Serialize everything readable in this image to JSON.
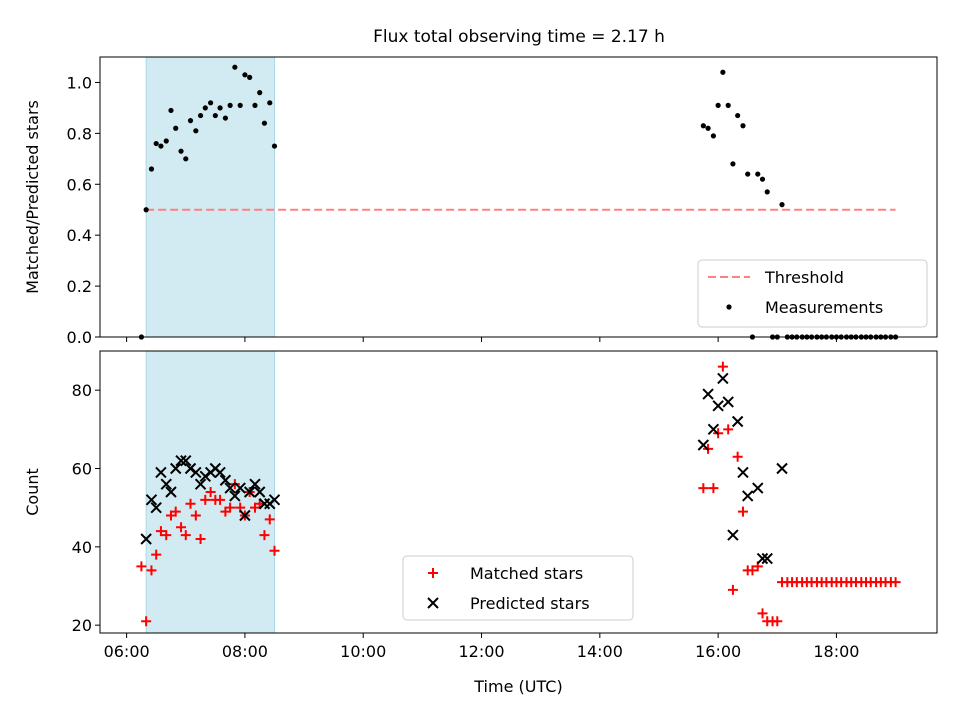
{
  "title": "Flux total observing time = 2.17 h",
  "colors": {
    "band": "#add8e6",
    "threshold": "#ff8080",
    "measurements": "#000000",
    "matched": "#ff0000",
    "predicted": "#000000"
  },
  "chart_data": [
    {
      "type": "scatter",
      "ylabel": "Matched/Predicted stars",
      "ylim": [
        0,
        1.1
      ],
      "yticks": [
        0.0,
        0.2,
        0.4,
        0.6,
        0.8,
        1.0
      ],
      "ytick_labels": [
        "0.0",
        "0.2",
        "0.4",
        "0.6",
        "0.8",
        "1.0"
      ],
      "xlim": [
        5.55,
        19.7
      ],
      "xticks": [
        6,
        8,
        10,
        12,
        14,
        16,
        18
      ],
      "tick_labels_shown": false,
      "grid": false,
      "legend_position": "lower-right",
      "shaded_interval": [
        6.33,
        8.5
      ],
      "threshold": {
        "name": "Threshold",
        "x": [
          6.33,
          19.0
        ],
        "y": 0.5
      },
      "series": [
        {
          "name": "Measurements",
          "marker": "dot",
          "x": [
            6.25,
            6.33,
            6.42,
            6.5,
            6.58,
            6.67,
            6.75,
            6.83,
            6.92,
            7.0,
            7.08,
            7.17,
            7.25,
            7.33,
            7.42,
            7.5,
            7.58,
            7.67,
            7.75,
            7.83,
            7.92,
            8.0,
            8.08,
            8.17,
            8.25,
            8.33,
            8.42,
            8.5,
            15.75,
            15.83,
            15.92,
            16.0,
            16.08,
            16.17,
            16.25,
            16.33,
            16.42,
            16.5,
            16.58,
            16.67,
            16.75,
            16.83,
            16.92,
            17.0,
            17.08,
            17.17,
            17.25,
            17.33,
            17.42,
            17.5,
            17.58,
            17.67,
            17.75,
            17.83,
            17.92,
            18.0,
            18.08,
            18.17,
            18.25,
            18.33,
            18.42,
            18.5,
            18.58,
            18.67,
            18.75,
            18.83,
            18.92,
            19.0
          ],
          "y": [
            0.0,
            0.5,
            0.66,
            0.76,
            0.75,
            0.77,
            0.89,
            0.82,
            0.73,
            0.7,
            0.85,
            0.81,
            0.87,
            0.9,
            0.92,
            0.87,
            0.9,
            0.86,
            0.91,
            1.06,
            0.91,
            1.03,
            1.02,
            0.91,
            0.96,
            0.84,
            0.92,
            0.75,
            0.83,
            0.82,
            0.79,
            0.91,
            1.04,
            0.91,
            0.68,
            0.87,
            0.83,
            0.64,
            0.0,
            0.64,
            0.62,
            0.57,
            0.0,
            0.0,
            0.52,
            0.0,
            0.0,
            0.0,
            0.0,
            0.0,
            0.0,
            0.0,
            0.0,
            0.0,
            0.0,
            0.0,
            0.0,
            0.0,
            0.0,
            0.0,
            0.0,
            0.0,
            0.0,
            0.0,
            0.0,
            0.0,
            0.0,
            0.0
          ]
        }
      ]
    },
    {
      "type": "scatter",
      "xlabel": "Time (UTC)",
      "ylabel": "Count",
      "ylim": [
        18,
        90
      ],
      "yticks": [
        20,
        40,
        60,
        80
      ],
      "ytick_labels": [
        "20",
        "40",
        "60",
        "80"
      ],
      "xlim": [
        5.55,
        19.7
      ],
      "xticks": [
        6,
        8,
        10,
        12,
        14,
        16,
        18
      ],
      "xtick_labels": [
        "06:00",
        "08:00",
        "10:00",
        "12:00",
        "14:00",
        "16:00",
        "18:00"
      ],
      "grid": false,
      "legend_position": "lower-center",
      "shaded_interval": [
        6.33,
        8.5
      ],
      "series": [
        {
          "name": "Matched stars",
          "marker": "plus",
          "x": [
            6.25,
            6.33,
            6.42,
            6.5,
            6.58,
            6.67,
            6.75,
            6.83,
            6.92,
            7.0,
            7.08,
            7.17,
            7.25,
            7.33,
            7.42,
            7.5,
            7.58,
            7.67,
            7.75,
            7.83,
            7.92,
            8.0,
            8.08,
            8.17,
            8.25,
            8.33,
            8.42,
            8.5,
            15.75,
            15.83,
            15.92,
            16.0,
            16.08,
            16.17,
            16.25,
            16.33,
            16.42,
            16.5,
            16.58,
            16.67,
            16.75,
            16.83,
            16.92,
            17.0,
            17.08,
            17.17,
            17.25,
            17.33,
            17.42,
            17.5,
            17.58,
            17.67,
            17.75,
            17.83,
            17.92,
            18.0,
            18.08,
            18.17,
            18.25,
            18.33,
            18.42,
            18.5,
            18.58,
            18.67,
            18.75,
            18.83,
            18.92,
            19.0
          ],
          "y": [
            35,
            21,
            34,
            38,
            44,
            43,
            48,
            49,
            45,
            43,
            51,
            48,
            42,
            52,
            54,
            52,
            52,
            49,
            50,
            56,
            50,
            48,
            54,
            50,
            51,
            43,
            47,
            39,
            55,
            65,
            55,
            69,
            86,
            70,
            29,
            63,
            49,
            34,
            34,
            35,
            23,
            21,
            21,
            21,
            31,
            31,
            31,
            31,
            31,
            31,
            31,
            31,
            31,
            31,
            31,
            31,
            31,
            31,
            31,
            31,
            31,
            31,
            31,
            31,
            31,
            31,
            31,
            31
          ]
        },
        {
          "name": "Predicted stars",
          "marker": "x",
          "x": [
            6.33,
            6.42,
            6.5,
            6.58,
            6.67,
            6.75,
            6.83,
            6.92,
            7.0,
            7.08,
            7.17,
            7.25,
            7.33,
            7.42,
            7.5,
            7.58,
            7.67,
            7.75,
            7.83,
            7.92,
            8.0,
            8.08,
            8.17,
            8.25,
            8.33,
            8.42,
            8.5,
            15.75,
            15.83,
            15.92,
            16.0,
            16.08,
            16.17,
            16.25,
            16.33,
            16.42,
            16.5,
            16.67,
            16.75,
            16.83,
            17.08
          ],
          "y": [
            42,
            52,
            50,
            59,
            56,
            54,
            60,
            62,
            62,
            60,
            59,
            56,
            58,
            59,
            60,
            59,
            57,
            55,
            53,
            55,
            48,
            54,
            56,
            54,
            51,
            51,
            52,
            66,
            79,
            70,
            76,
            83,
            77,
            43,
            72,
            59,
            53,
            55,
            37,
            37,
            60
          ]
        }
      ]
    }
  ]
}
